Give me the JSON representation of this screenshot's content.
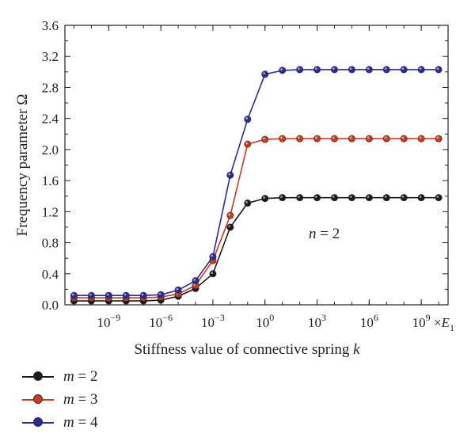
{
  "chart_data": {
    "type": "line",
    "xlabel": "Stiffness value of connective spring k",
    "ylabel": "Frequency parameter Ω",
    "x_unit": "×E1",
    "annotation": "n = 2",
    "x_scale": "log",
    "x": [
      1e-11,
      1e-10,
      1e-09,
      1e-08,
      1e-07,
      1e-06,
      1e-05,
      0.0001,
      0.001,
      0.01,
      0.1,
      1.0,
      10.0,
      100.0,
      1000.0,
      10000.0,
      100000.0,
      1000000.0,
      10000000.0,
      100000000.0,
      1000000000.0,
      10000000000.0
    ],
    "x_ticks": [
      {
        "value": 1e-09,
        "base": "10",
        "exp": "−9"
      },
      {
        "value": 1e-06,
        "base": "10",
        "exp": "−6"
      },
      {
        "value": 0.001,
        "base": "10",
        "exp": "−3"
      },
      {
        "value": 1.0,
        "base": "10",
        "exp": "0"
      },
      {
        "value": 1000.0,
        "base": "10",
        "exp": "3"
      },
      {
        "value": 1000000.0,
        "base": "10",
        "exp": "6"
      },
      {
        "value": 1000000000.0,
        "base": "10",
        "exp": "9"
      }
    ],
    "y_ticks": [
      "0.0",
      "0.4",
      "0.8",
      "1.2",
      "1.6",
      "2.0",
      "2.4",
      "2.8",
      "3.2",
      "3.6"
    ],
    "ylim": [
      0,
      3.6
    ],
    "grid": false,
    "legend_position": "bottom-left",
    "series": [
      {
        "name": "m = 2",
        "var": "m",
        "eq": "= 2",
        "color": "#1a1a1a",
        "values": [
          0.05,
          0.05,
          0.05,
          0.05,
          0.05,
          0.06,
          0.11,
          0.21,
          0.4,
          1.0,
          1.31,
          1.37,
          1.38,
          1.38,
          1.38,
          1.38,
          1.38,
          1.38,
          1.38,
          1.38,
          1.38,
          1.38
        ]
      },
      {
        "name": "m = 3",
        "var": "m",
        "eq": "= 3",
        "color": "#cc3a1e",
        "values": [
          0.09,
          0.09,
          0.09,
          0.09,
          0.09,
          0.1,
          0.14,
          0.25,
          0.57,
          1.15,
          2.07,
          2.13,
          2.14,
          2.14,
          2.14,
          2.14,
          2.14,
          2.14,
          2.14,
          2.14,
          2.14,
          2.14
        ]
      },
      {
        "name": "m = 4",
        "var": "m",
        "eq": "= 4",
        "color": "#2a2a9a",
        "values": [
          0.12,
          0.12,
          0.12,
          0.12,
          0.12,
          0.13,
          0.19,
          0.31,
          0.62,
          1.67,
          2.39,
          2.97,
          3.02,
          3.03,
          3.03,
          3.03,
          3.03,
          3.03,
          3.03,
          3.03,
          3.03,
          3.03
        ]
      }
    ]
  }
}
